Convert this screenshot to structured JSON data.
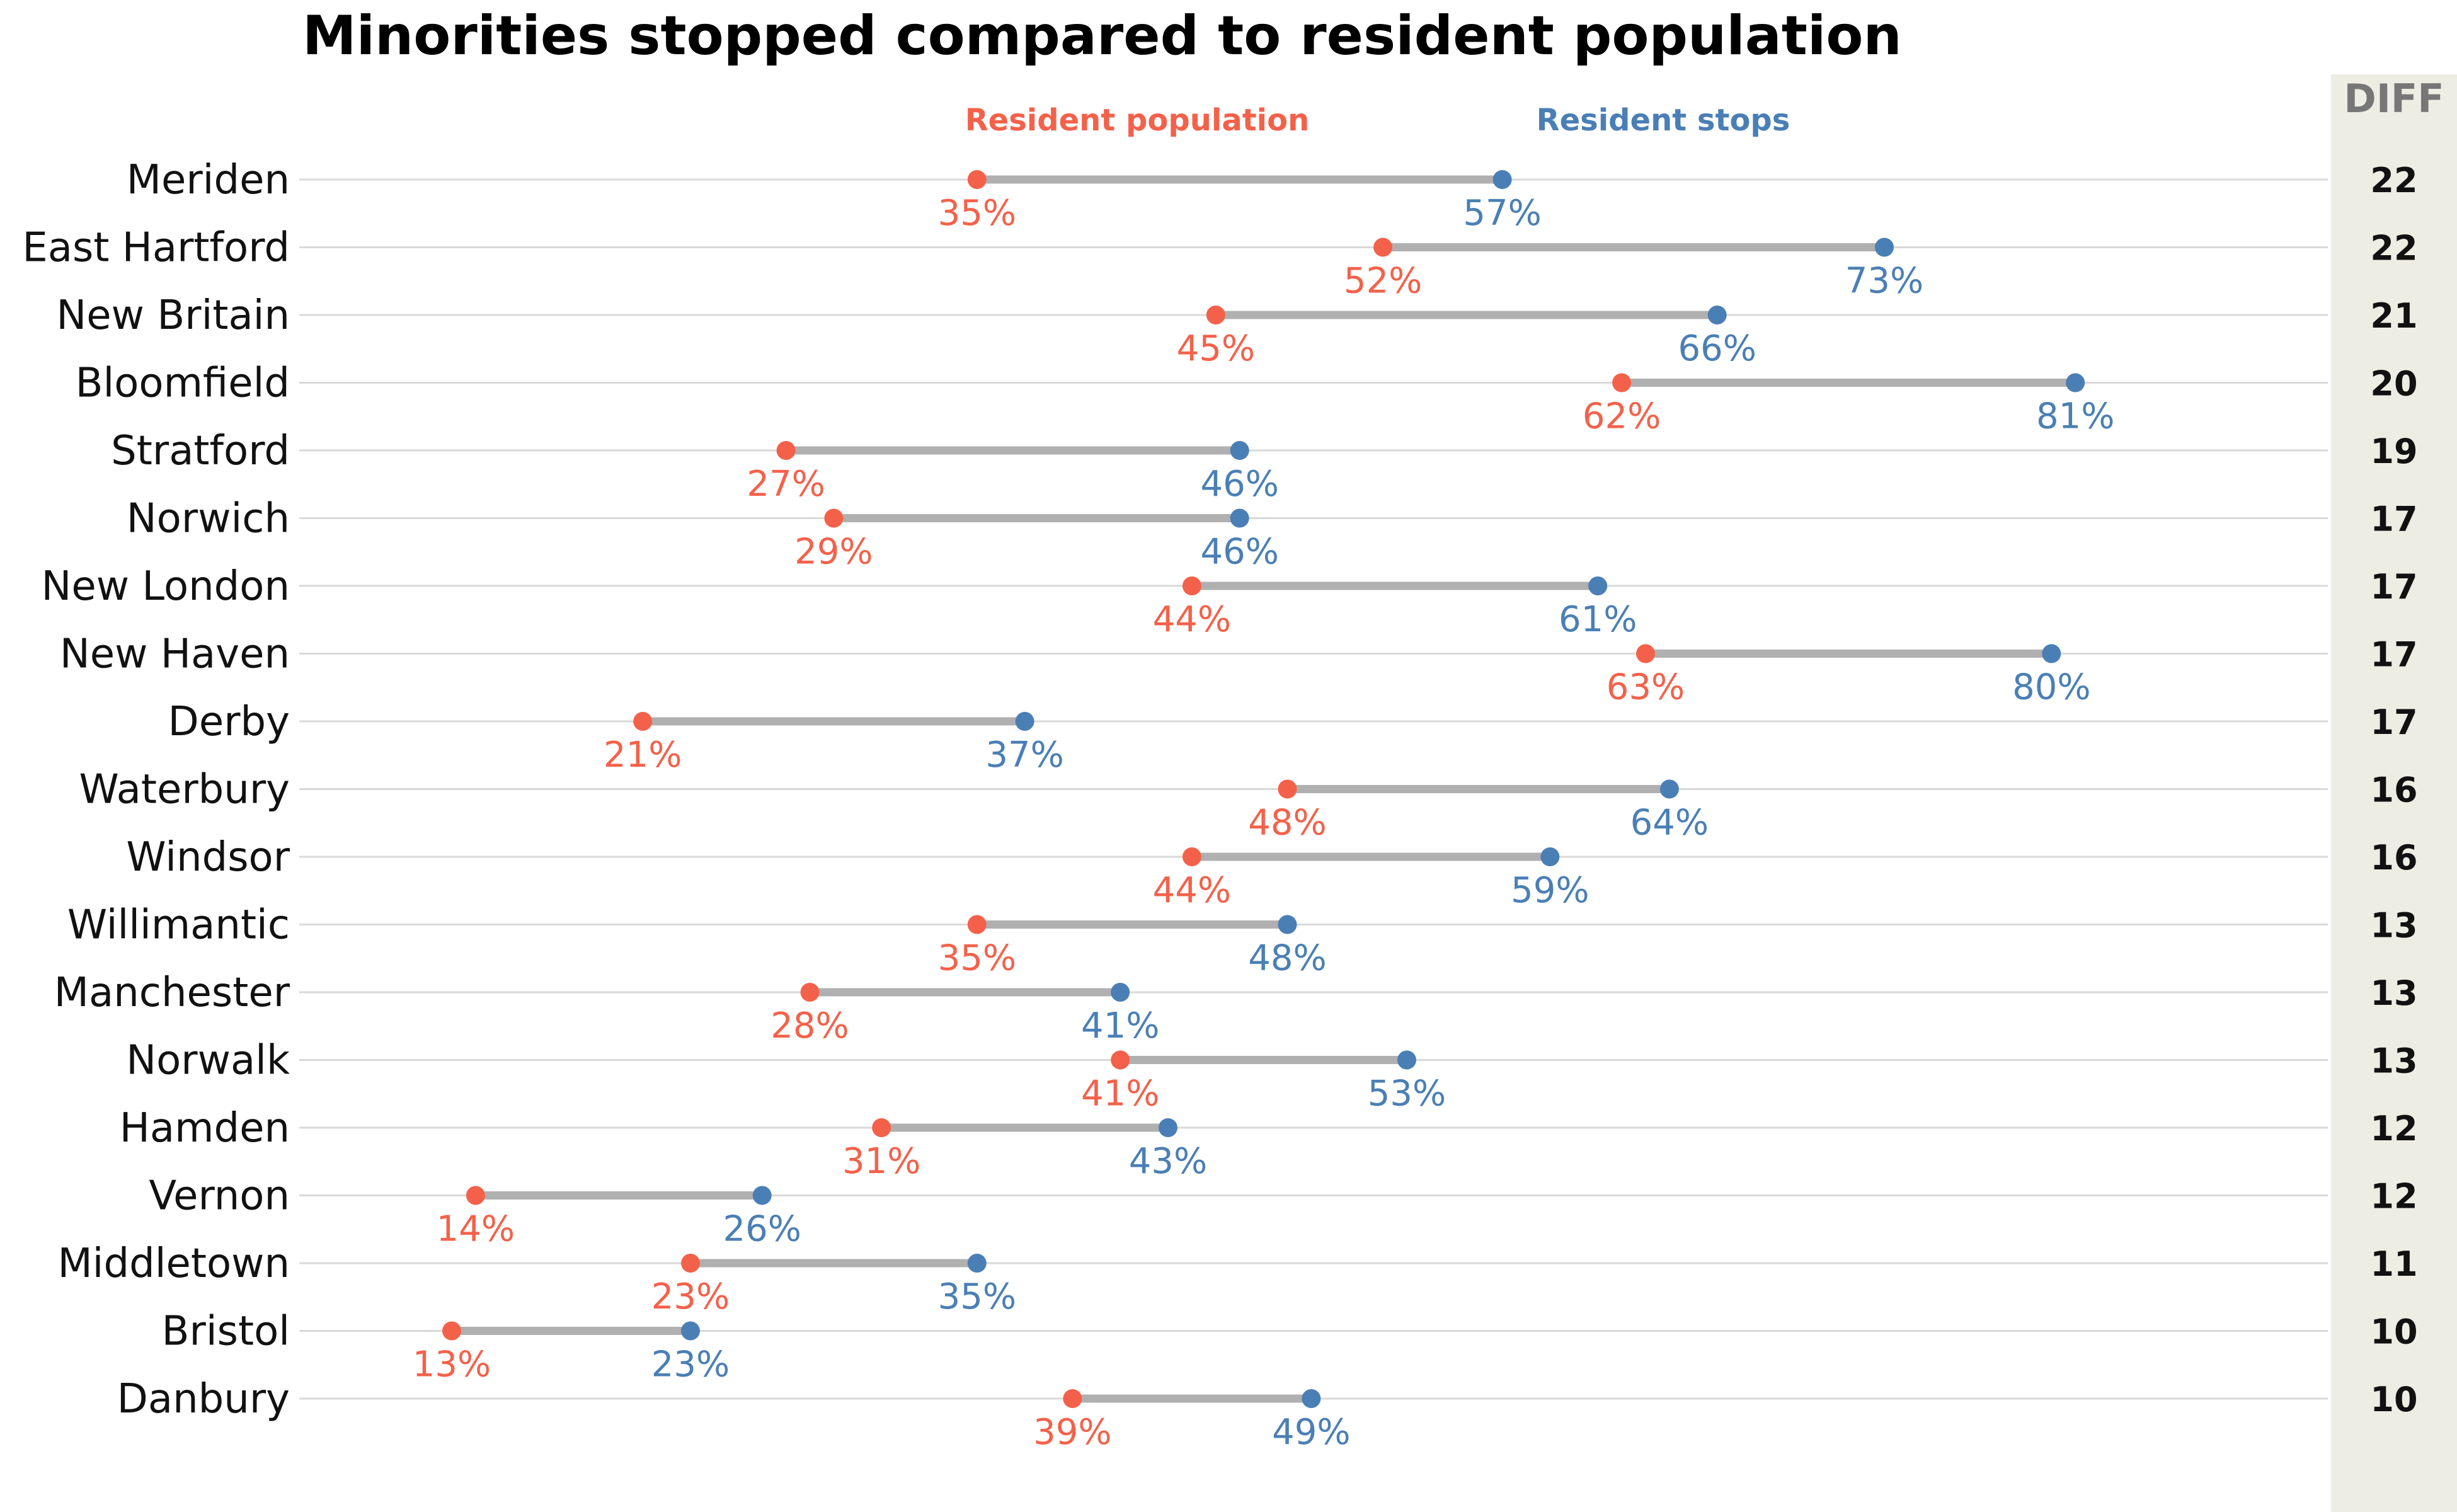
{
  "colors": {
    "population": "#f4614a",
    "stops": "#4a7fb5",
    "connector": "#b0b0b0",
    "gridline": "#d9d9d9",
    "diff_panel": "#ededE3"
  },
  "chart_data": {
    "type": "dumbbell",
    "title": "Minorities stopped compared to resident population",
    "legend": {
      "population": "Resident population",
      "stops": "Resident stops",
      "placement": "top-center"
    },
    "diff_header": "DIFF",
    "x_range": [
      0,
      90
    ],
    "categories": [
      "Meriden",
      "East Hartford",
      "New Britain",
      "Bloomfield",
      "Stratford",
      "Norwich",
      "New London",
      "New Haven",
      "Derby",
      "Waterbury",
      "Windsor",
      "Willimantic",
      "Manchester",
      "Norwalk",
      "Hamden",
      "Vernon",
      "Middletown",
      "Bristol",
      "Danbury"
    ],
    "series": [
      {
        "name": "Resident population",
        "values": [
          35,
          52,
          45,
          62,
          27,
          29,
          44,
          63,
          21,
          48,
          44,
          35,
          28,
          41,
          31,
          14,
          23,
          13,
          39
        ]
      },
      {
        "name": "Resident stops",
        "values": [
          57,
          73,
          66,
          81,
          46,
          46,
          61,
          80,
          37,
          64,
          59,
          48,
          41,
          53,
          43,
          26,
          35,
          23,
          49
        ]
      }
    ],
    "diff": [
      22,
      22,
      21,
      20,
      19,
      17,
      17,
      17,
      17,
      16,
      16,
      13,
      13,
      13,
      12,
      12,
      11,
      10,
      10
    ],
    "value_suffix": "%"
  }
}
